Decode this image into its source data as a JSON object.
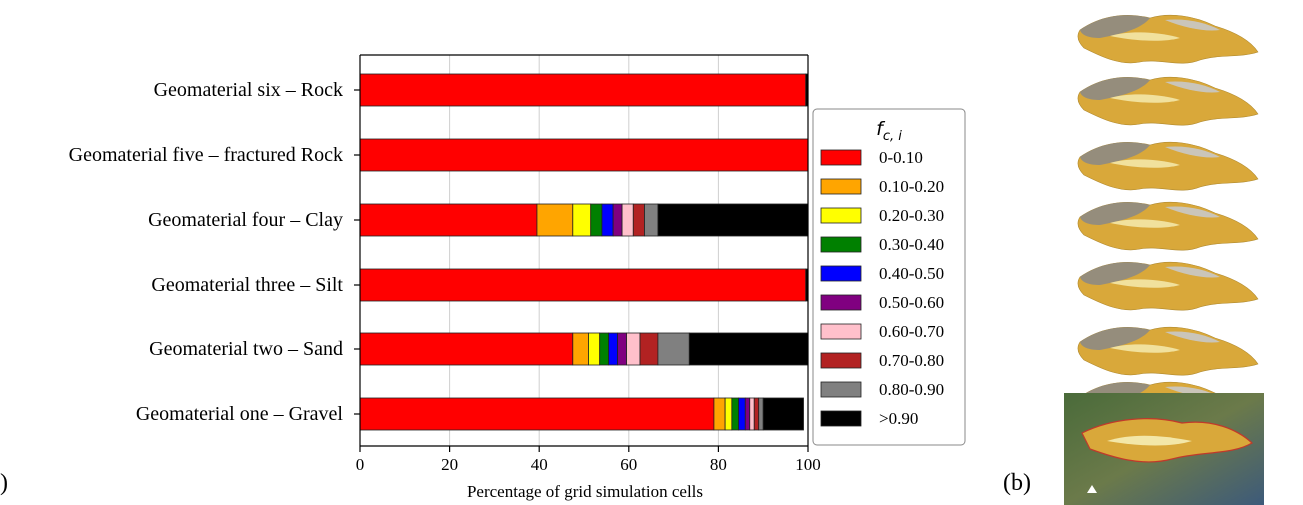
{
  "panel_labels": {
    "a": ")",
    "b": "(b)"
  },
  "legend_colors": [
    "#ff0000",
    "#ffa500",
    "#ffff00",
    "#008000",
    "#0000ff",
    "#800080",
    "#ffc0cb",
    "#b22222",
    "#808080",
    "#000000"
  ],
  "chart_data": {
    "type": "bar",
    "orientation": "horizontal",
    "stacked": true,
    "categories": [
      "Geomaterial six – Rock",
      "Geomaterial five – fractured Rock",
      "Geomaterial four – Clay",
      "Geomaterial three – Silt",
      "Geomaterial two – Sand",
      "Geomaterial one – Gravel"
    ],
    "series": [
      {
        "name": "0-0.10",
        "values": [
          99.5,
          100,
          39.5,
          99.5,
          47.5,
          79
        ]
      },
      {
        "name": "0.10-0.20",
        "values": [
          0,
          0,
          8,
          0,
          3.5,
          2.5
        ]
      },
      {
        "name": "0.20-0.30",
        "values": [
          0,
          0,
          4,
          0,
          2.5,
          1.5
        ]
      },
      {
        "name": "0.30-0.40",
        "values": [
          0,
          0,
          2.5,
          0,
          2,
          1.5
        ]
      },
      {
        "name": "0.40-0.50",
        "values": [
          0,
          0,
          2.5,
          0,
          2,
          1.5
        ]
      },
      {
        "name": "0.50-0.60",
        "values": [
          0,
          0,
          2,
          0,
          2,
          1
        ]
      },
      {
        "name": "0.60-0.70",
        "values": [
          0,
          0,
          2.5,
          0,
          3,
          1
        ]
      },
      {
        "name": "0.70-0.80",
        "values": [
          0,
          0,
          2.5,
          0,
          4,
          1
        ]
      },
      {
        "name": "0.80-0.90",
        "values": [
          0,
          0,
          3,
          0,
          7,
          1
        ]
      },
      {
        "name": ">0.90",
        "values": [
          0.5,
          0,
          33.5,
          0.5,
          26.5,
          9
        ]
      }
    ],
    "xlabel": "Percentage of grid simulation cells",
    "ylabel": "",
    "xlim": [
      0,
      100
    ],
    "xticks": [
      0,
      20,
      40,
      60,
      80,
      100
    ],
    "grid": "vertical",
    "legend_title": "f c, i",
    "legend_position": "right"
  }
}
